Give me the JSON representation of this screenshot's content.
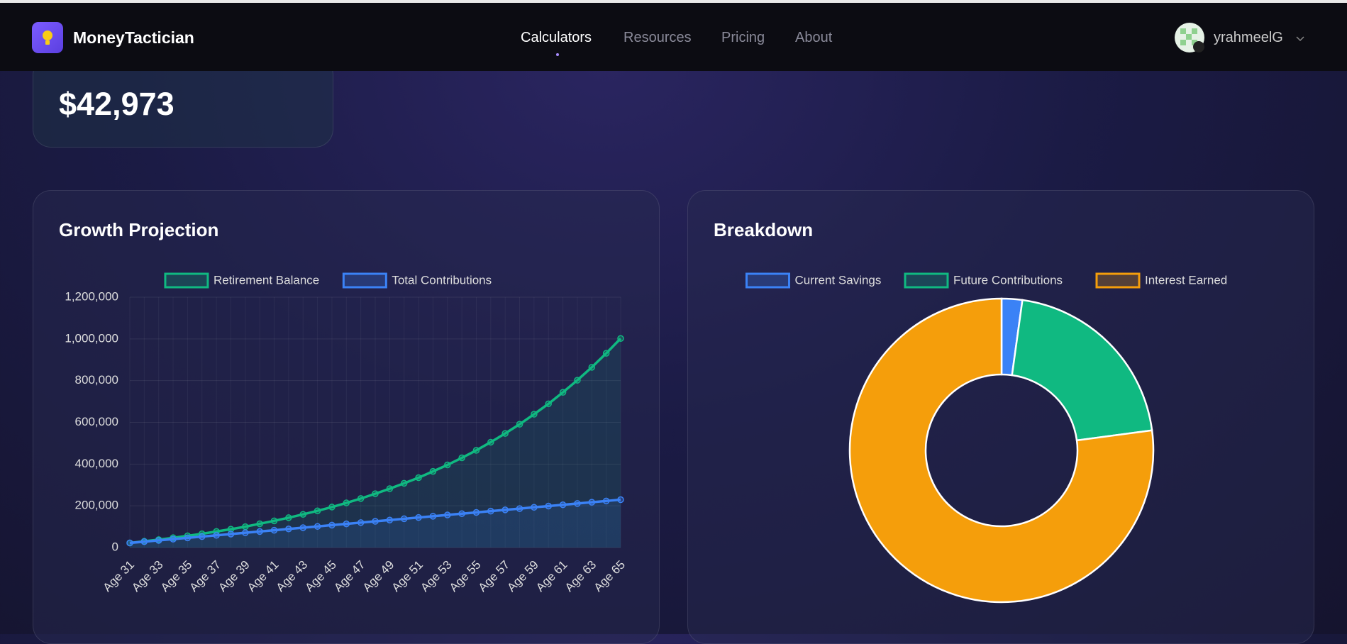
{
  "header": {
    "brand": "MoneyTactician",
    "nav": [
      "Calculators",
      "Resources",
      "Pricing",
      "About"
    ],
    "user": "yrahmeelG"
  },
  "stat": {
    "value": "$42,973"
  },
  "chart_data": [
    {
      "type": "line",
      "title": "Growth Projection",
      "categories": [
        "Age 31",
        null,
        "Age 33",
        null,
        "Age 35",
        null,
        "Age 37",
        null,
        "Age 39",
        null,
        "Age 41",
        null,
        "Age 43",
        null,
        "Age 45",
        null,
        "Age 47",
        null,
        "Age 49",
        null,
        "Age 51",
        null,
        "Age 53",
        null,
        "Age 55",
        null,
        "Age 57",
        null,
        "Age 59",
        null,
        "Age 61",
        null,
        "Age 63",
        null,
        "Age 65"
      ],
      "series": [
        {
          "name": "Retirement Balance",
          "color": "#10b981",
          "values": [
            22000,
            30000,
            38000,
            47000,
            56000,
            66000,
            77000,
            88000,
            100000,
            114000,
            128000,
            143000,
            159000,
            176000,
            194000,
            214000,
            235000,
            258000,
            282000,
            308000,
            335000,
            365000,
            396000,
            430000,
            466000,
            505000,
            547000,
            591000,
            639000,
            689000,
            744000,
            802000,
            864000,
            931000,
            1002000
          ]
        },
        {
          "name": "Total Contributions",
          "color": "#3b82f6",
          "values": [
            22000,
            28100,
            34200,
            40300,
            46400,
            52500,
            58600,
            64700,
            70800,
            76900,
            83000,
            89100,
            95200,
            101300,
            107400,
            113500,
            119600,
            125700,
            131800,
            137900,
            144000,
            150100,
            156200,
            162300,
            168400,
            174500,
            180600,
            186700,
            192800,
            198900,
            205000,
            211100,
            217200,
            223300,
            229400
          ]
        }
      ],
      "ylim": [
        0,
        1200000
      ],
      "yticks": [
        0,
        {
          "value": 200000,
          "label": "200,000"
        },
        {
          "value": 400000,
          "label": "400,000"
        },
        {
          "value": 600000,
          "label": "600,000"
        },
        {
          "value": 800000,
          "label": "800,000"
        },
        {
          "value": 1000000,
          "label": "1,000,000"
        },
        {
          "value": 1200000,
          "label": "1,200,000"
        }
      ],
      "grid": true,
      "legend": "top"
    },
    {
      "type": "doughnut",
      "title": "Breakdown",
      "categories": [
        "Current Savings",
        "Future Contributions",
        "Interest Earned"
      ],
      "values": [
        22000,
        207400,
        772600
      ],
      "colors": [
        "#3b82f6",
        "#10b981",
        "#f59e0b"
      ],
      "legend": "top"
    }
  ]
}
